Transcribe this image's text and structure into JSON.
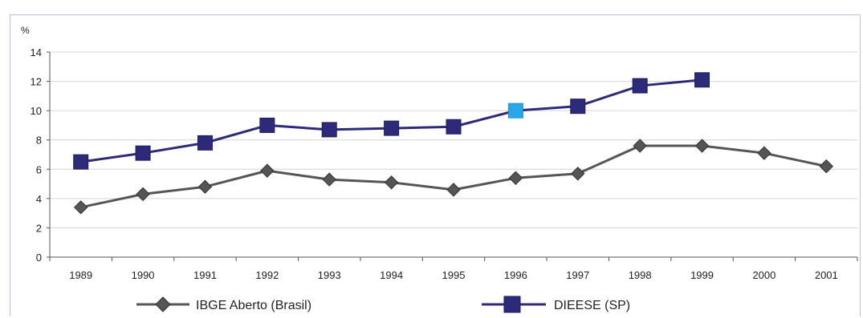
{
  "chart_data": {
    "type": "line",
    "ylabel": "%",
    "ylim": [
      0,
      14
    ],
    "yticks": [
      0,
      2,
      4,
      6,
      8,
      10,
      12,
      14
    ],
    "grid": true,
    "legend_position": "bottom",
    "categories": [
      "1989",
      "1990",
      "1991",
      "1992",
      "1993",
      "1994",
      "1995",
      "1996",
      "1997",
      "1998",
      "1999",
      "2000",
      "2001"
    ],
    "series": [
      {
        "name": "IBGE Aberto (Brasil)",
        "marker": "diamond",
        "color": "#555555",
        "values": [
          3.4,
          4.3,
          4.8,
          5.9,
          5.3,
          5.1,
          4.6,
          5.4,
          5.7,
          7.6,
          7.6,
          7.1,
          6.2
        ]
      },
      {
        "name": "DIEESE (SP)",
        "marker": "square",
        "color": "#2e2a7a",
        "highlight_color": "#29a7e6",
        "highlight_category": "1996",
        "values": [
          6.5,
          7.1,
          7.8,
          9.0,
          8.7,
          8.8,
          8.9,
          10.0,
          10.3,
          11.7,
          12.1,
          null,
          null
        ]
      }
    ]
  }
}
